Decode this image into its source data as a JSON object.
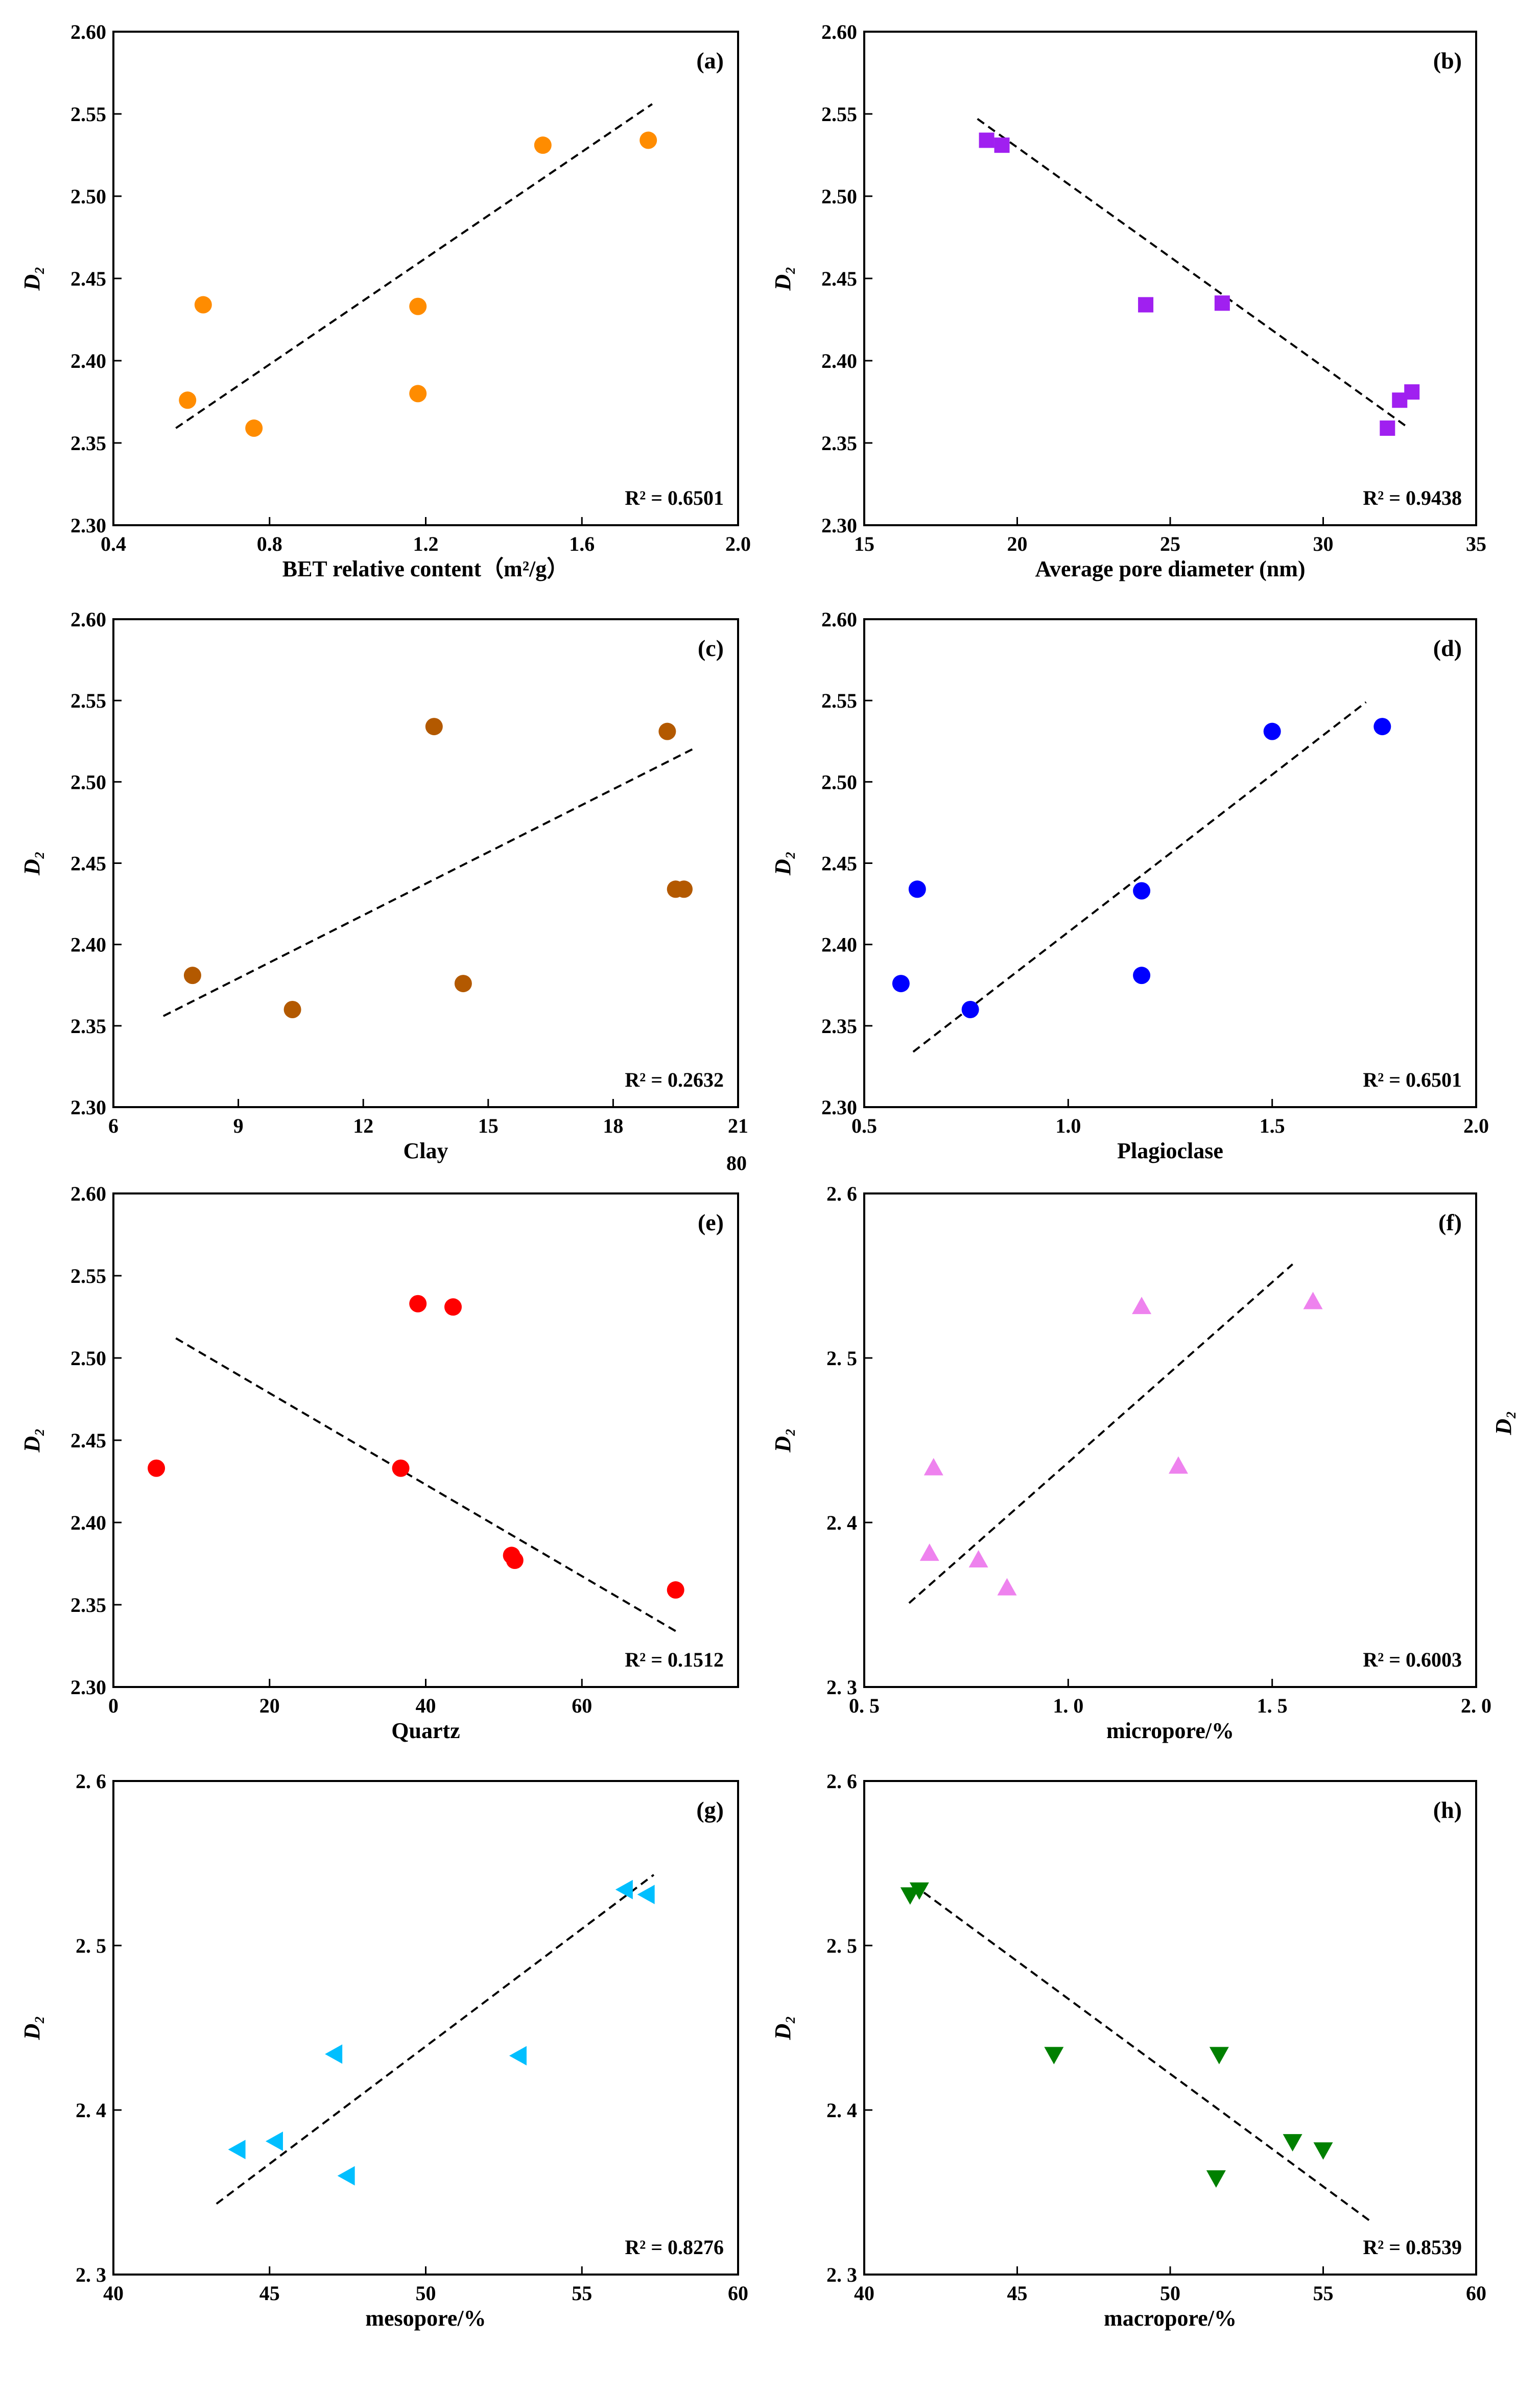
{
  "figure_description_none": "",
  "extra_labels": {
    "clay_axis_extra": "80",
    "right_margin_ylabel": "D₂"
  },
  "chart_data": [
    {
      "id": "a",
      "type": "scatter",
      "panel_label": "(a)",
      "xlabel": "BET relative content（m²/g）",
      "ylabel": "D₂",
      "r2_text": "R² = 0.6501",
      "xlim": [
        0.4,
        2.0
      ],
      "ylim": [
        2.3,
        2.6
      ],
      "xticks": [
        0.4,
        0.8,
        1.2,
        1.6,
        2.0
      ],
      "xtick_labels": [
        "0.4",
        "0.8",
        "1.2",
        "1.6",
        "2.0"
      ],
      "yticks": [
        2.3,
        2.35,
        2.4,
        2.45,
        2.5,
        2.55,
        2.6
      ],
      "ytick_labels": [
        "2.30",
        "2.35",
        "2.40",
        "2.45",
        "2.50",
        "2.55",
        "2.60"
      ],
      "marker": "circle",
      "color": "#ff8c00",
      "points": [
        {
          "x": 0.59,
          "y": 2.376
        },
        {
          "x": 0.63,
          "y": 2.434
        },
        {
          "x": 0.76,
          "y": 2.359
        },
        {
          "x": 1.18,
          "y": 2.433
        },
        {
          "x": 1.18,
          "y": 2.38
        },
        {
          "x": 1.5,
          "y": 2.531
        },
        {
          "x": 1.77,
          "y": 2.534
        }
      ],
      "fit_line": [
        {
          "x": 0.56,
          "y": 2.359
        },
        {
          "x": 1.78,
          "y": 2.556
        }
      ]
    },
    {
      "id": "b",
      "type": "scatter",
      "panel_label": "(b)",
      "xlabel": "Average pore diameter (nm)",
      "ylabel": "D₂",
      "r2_text": "R² = 0.9438",
      "xlim": [
        15,
        35
      ],
      "ylim": [
        2.3,
        2.6
      ],
      "xticks": [
        15,
        20,
        25,
        30,
        35
      ],
      "xtick_labels": [
        "15",
        "20",
        "25",
        "30",
        "35"
      ],
      "yticks": [
        2.3,
        2.35,
        2.4,
        2.45,
        2.5,
        2.55,
        2.6
      ],
      "ytick_labels": [
        "2.30",
        "2.35",
        "2.40",
        "2.45",
        "2.50",
        "2.55",
        "2.60"
      ],
      "marker": "square",
      "color": "#a020f0",
      "points": [
        {
          "x": 19.0,
          "y": 2.534
        },
        {
          "x": 19.5,
          "y": 2.531
        },
        {
          "x": 24.2,
          "y": 2.434
        },
        {
          "x": 26.7,
          "y": 2.435
        },
        {
          "x": 32.1,
          "y": 2.359
        },
        {
          "x": 32.5,
          "y": 2.376
        },
        {
          "x": 32.9,
          "y": 2.381
        }
      ],
      "fit_line": [
        {
          "x": 18.7,
          "y": 2.547
        },
        {
          "x": 32.8,
          "y": 2.359
        }
      ]
    },
    {
      "id": "c",
      "type": "scatter",
      "panel_label": "(c)",
      "xlabel": "Clay",
      "ylabel": "D₂",
      "r2_text": "R² = 0.2632",
      "xlim": [
        6,
        21
      ],
      "ylim": [
        2.3,
        2.6
      ],
      "xticks": [
        6,
        9,
        12,
        15,
        18,
        21
      ],
      "xtick_labels": [
        "6",
        "9",
        "12",
        "15",
        "18",
        "21"
      ],
      "yticks": [
        2.3,
        2.35,
        2.4,
        2.45,
        2.5,
        2.55,
        2.6
      ],
      "ytick_labels": [
        "2.30",
        "2.35",
        "2.40",
        "2.45",
        "2.50",
        "2.55",
        "2.60"
      ],
      "marker": "circle",
      "color": "#b35900",
      "points": [
        {
          "x": 7.9,
          "y": 2.381
        },
        {
          "x": 10.3,
          "y": 2.36
        },
        {
          "x": 13.7,
          "y": 2.534
        },
        {
          "x": 14.4,
          "y": 2.376
        },
        {
          "x": 19.3,
          "y": 2.531
        },
        {
          "x": 19.5,
          "y": 2.434
        },
        {
          "x": 19.7,
          "y": 2.434
        }
      ],
      "fit_line": [
        {
          "x": 7.2,
          "y": 2.356
        },
        {
          "x": 19.9,
          "y": 2.52
        }
      ]
    },
    {
      "id": "d",
      "type": "scatter",
      "panel_label": "(d)",
      "xlabel": "Plagioclase",
      "ylabel": "D₂",
      "r2_text": "R² = 0.6501",
      "xlim": [
        0.5,
        2.0
      ],
      "ylim": [
        2.3,
        2.6
      ],
      "xticks": [
        0.5,
        1.0,
        1.5,
        2.0
      ],
      "xtick_labels": [
        "0.5",
        "1.0",
        "1.5",
        "2.0"
      ],
      "yticks": [
        2.3,
        2.35,
        2.4,
        2.45,
        2.5,
        2.55,
        2.6
      ],
      "ytick_labels": [
        "2.30",
        "2.35",
        "2.40",
        "2.45",
        "2.50",
        "2.55",
        "2.60"
      ],
      "marker": "circle",
      "color": "#0000ff",
      "points": [
        {
          "x": 0.59,
          "y": 2.376
        },
        {
          "x": 0.63,
          "y": 2.434
        },
        {
          "x": 0.76,
          "y": 2.36
        },
        {
          "x": 1.18,
          "y": 2.433
        },
        {
          "x": 1.18,
          "y": 2.381
        },
        {
          "x": 1.5,
          "y": 2.531
        },
        {
          "x": 1.77,
          "y": 2.534
        }
      ],
      "fit_line": [
        {
          "x": 0.62,
          "y": 2.334
        },
        {
          "x": 1.73,
          "y": 2.549
        }
      ]
    },
    {
      "id": "e",
      "type": "scatter",
      "panel_label": "(e)",
      "xlabel": "Quartz",
      "ylabel": "D₂",
      "r2_text": "R² = 0.1512",
      "xlim": [
        0,
        80
      ],
      "ylim": [
        2.3,
        2.6
      ],
      "xticks": [
        0,
        20,
        40,
        60
      ],
      "xtick_labels": [
        "0",
        "20",
        "40",
        "60"
      ],
      "yticks": [
        2.3,
        2.35,
        2.4,
        2.45,
        2.5,
        2.55,
        2.6
      ],
      "ytick_labels": [
        "2.30",
        "2.35",
        "2.40",
        "2.45",
        "2.50",
        "2.55",
        "2.60"
      ],
      "marker": "circle",
      "color": "#ff0000",
      "points": [
        {
          "x": 5.5,
          "y": 2.433
        },
        {
          "x": 36.8,
          "y": 2.433
        },
        {
          "x": 39.0,
          "y": 2.533
        },
        {
          "x": 43.5,
          "y": 2.531
        },
        {
          "x": 51.0,
          "y": 2.38
        },
        {
          "x": 51.4,
          "y": 2.377
        },
        {
          "x": 72.0,
          "y": 2.359
        }
      ],
      "fit_line": [
        {
          "x": 8.0,
          "y": 2.512
        },
        {
          "x": 72.0,
          "y": 2.334
        }
      ]
    },
    {
      "id": "f",
      "type": "scatter",
      "panel_label": "(f)",
      "xlabel": "micropore/%",
      "ylabel": "D₂",
      "r2_text": "R² = 0.6003",
      "xlim": [
        0.5,
        2.0
      ],
      "ylim": [
        2.3,
        2.6
      ],
      "xticks": [
        0.5,
        1.0,
        1.5,
        2.0
      ],
      "xtick_labels": [
        "0. 5",
        "1. 0",
        "1. 5",
        "2. 0"
      ],
      "yticks": [
        2.3,
        2.4,
        2.5,
        2.6
      ],
      "ytick_labels": [
        "2. 3",
        "2. 4",
        "2. 5",
        "2. 6"
      ],
      "marker": "triangle-up",
      "color": "#ee82ee",
      "points": [
        {
          "x": 0.66,
          "y": 2.381
        },
        {
          "x": 0.67,
          "y": 2.433
        },
        {
          "x": 0.78,
          "y": 2.377
        },
        {
          "x": 0.85,
          "y": 2.36
        },
        {
          "x": 1.18,
          "y": 2.531
        },
        {
          "x": 1.27,
          "y": 2.434
        },
        {
          "x": 1.6,
          "y": 2.534
        }
      ],
      "fit_line": [
        {
          "x": 0.61,
          "y": 2.351
        },
        {
          "x": 1.55,
          "y": 2.557
        }
      ]
    },
    {
      "id": "g",
      "type": "scatter",
      "panel_label": "(g)",
      "xlabel": "mesopore/%",
      "ylabel": "D₂",
      "r2_text": "R² = 0.8276",
      "xlim": [
        40,
        60
      ],
      "ylim": [
        2.3,
        2.6
      ],
      "xticks": [
        40,
        45,
        50,
        55,
        60
      ],
      "xtick_labels": [
        "40",
        "45",
        "50",
        "55",
        "60"
      ],
      "yticks": [
        2.3,
        2.4,
        2.5,
        2.6
      ],
      "ytick_labels": [
        "2. 3",
        "2. 4",
        "2. 5",
        "2. 6"
      ],
      "marker": "triangle-left",
      "color": "#00bfff",
      "points": [
        {
          "x": 44.0,
          "y": 2.376
        },
        {
          "x": 45.2,
          "y": 2.381
        },
        {
          "x": 47.1,
          "y": 2.434
        },
        {
          "x": 47.5,
          "y": 2.36
        },
        {
          "x": 53.0,
          "y": 2.433
        },
        {
          "x": 56.4,
          "y": 2.534
        },
        {
          "x": 57.1,
          "y": 2.531
        }
      ],
      "fit_line": [
        {
          "x": 43.3,
          "y": 2.343
        },
        {
          "x": 57.3,
          "y": 2.543
        }
      ]
    },
    {
      "id": "h",
      "type": "scatter",
      "panel_label": "(h)",
      "xlabel": "macropore/%",
      "ylabel": "D₂",
      "r2_text": "R² = 0.8539",
      "xlim": [
        40,
        60
      ],
      "ylim": [
        2.3,
        2.6
      ],
      "xticks": [
        40,
        45,
        50,
        55,
        60
      ],
      "xtick_labels": [
        "40",
        "45",
        "50",
        "55",
        "60"
      ],
      "yticks": [
        2.3,
        2.4,
        2.5,
        2.6
      ],
      "ytick_labels": [
        "2. 3",
        "2. 4",
        "2. 5",
        "2. 6"
      ],
      "marker": "triangle-down",
      "color": "#008000",
      "points": [
        {
          "x": 41.5,
          "y": 2.531
        },
        {
          "x": 41.8,
          "y": 2.534
        },
        {
          "x": 46.2,
          "y": 2.434
        },
        {
          "x": 51.6,
          "y": 2.434
        },
        {
          "x": 51.5,
          "y": 2.359
        },
        {
          "x": 54.0,
          "y": 2.381
        },
        {
          "x": 55.0,
          "y": 2.376
        }
      ],
      "fit_line": [
        {
          "x": 41.6,
          "y": 2.537
        },
        {
          "x": 56.5,
          "y": 2.333
        }
      ]
    }
  ]
}
